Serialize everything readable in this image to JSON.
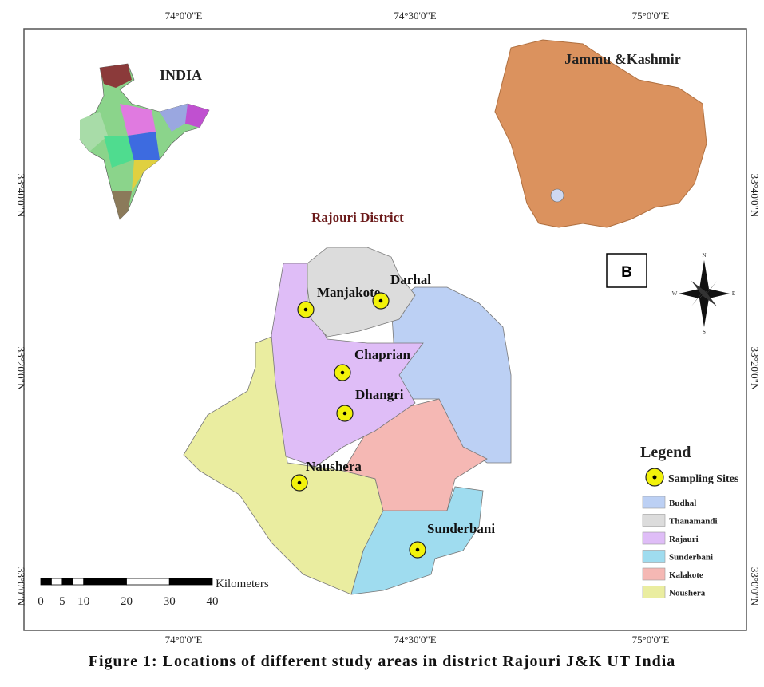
{
  "coords": {
    "top": [
      "74°0'0\"E",
      "74°30'0\"E",
      "75°0'0\"E"
    ],
    "bottom": [
      "74°0'0\"E",
      "74°30'0\"E",
      "75°0'0\"E"
    ],
    "left": [
      "33°40'0\"N",
      "33°20'0\"N",
      "33°0'0\"N"
    ],
    "right": [
      "33°40'0\"N",
      "33°20'0\"N",
      "33°0'0\"N"
    ]
  },
  "insets": {
    "india": "INDIA",
    "jk": "Jammu &Kashmir"
  },
  "map_title": "Rajouri District",
  "panel_label": "B",
  "compass": {
    "n": "N",
    "s": "S",
    "e": "E",
    "w": "W"
  },
  "sites": [
    {
      "name": "Manjakote"
    },
    {
      "name": "Darhal"
    },
    {
      "name": "Chaprian"
    },
    {
      "name": "Dhangri"
    },
    {
      "name": "Naushera"
    },
    {
      "name": "Sunderbani"
    }
  ],
  "legend": {
    "title": "Legend",
    "sampling": "Sampling Sites",
    "items": [
      {
        "label": "Budhal",
        "color": "#bcd0f4"
      },
      {
        "label": "Thanamandi",
        "color": "#dcdcdc"
      },
      {
        "label": "Rajauri",
        "color": "#dfbdf7"
      },
      {
        "label": "Sunderbani",
        "color": "#9fdcef"
      },
      {
        "label": "Kalakote",
        "color": "#f5b8b4"
      },
      {
        "label": "Noushera",
        "color": "#eaeda0"
      }
    ]
  },
  "scale": {
    "unit": "Kilometers",
    "ticks": [
      "0",
      "5",
      "10",
      "20",
      "30",
      "40"
    ]
  },
  "caption": "Figure 1: Locations of different study areas in district Rajouri J&K UT India"
}
